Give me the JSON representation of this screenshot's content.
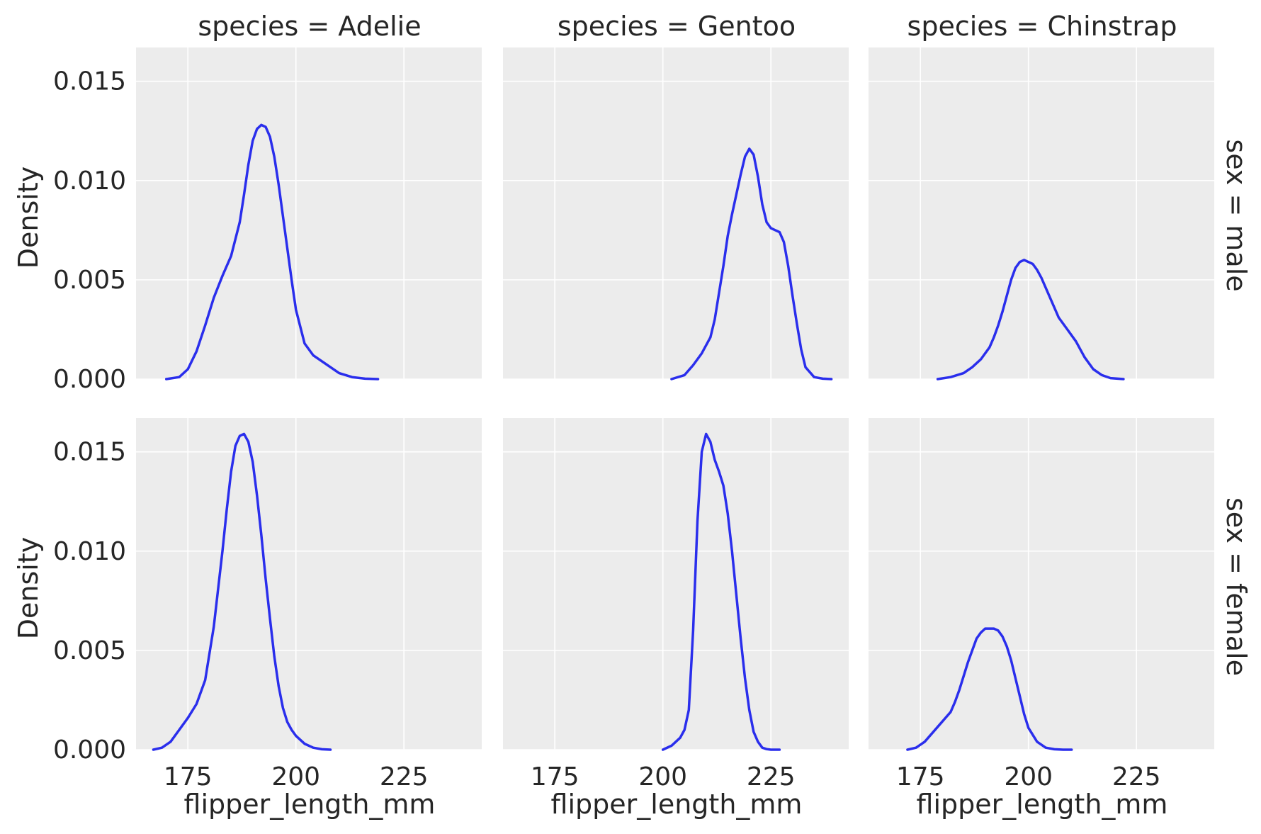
{
  "chart_data": {
    "type": "line",
    "facet_cols": [
      "species = Adelie",
      "species = Gentoo",
      "species = Chinstrap"
    ],
    "facet_rows": [
      "sex = male",
      "sex = female"
    ],
    "xlabel": "flipper_length_mm",
    "ylabel": "Density",
    "xlim": [
      163,
      243
    ],
    "ylim": [
      0,
      0.0167
    ],
    "xticks": [
      175,
      200,
      225
    ],
    "yticks": [
      0.0,
      0.005,
      0.01,
      0.015
    ],
    "ytick_labels": [
      "0.000",
      "0.005",
      "0.010",
      "0.015"
    ],
    "grid": true,
    "line_color": "#2a2eec",
    "panel_background": "#ececec",
    "panels": [
      {
        "row": 0,
        "col": 0,
        "name": "Adelie male",
        "x": [
          170,
          173,
          175,
          177,
          179,
          181,
          183,
          185,
          187,
          188,
          189,
          190,
          191,
          192,
          193,
          194,
          195,
          196,
          197,
          198,
          199,
          200,
          202,
          204,
          206,
          208,
          210,
          213,
          216,
          219
        ],
        "y": [
          0.0,
          0.0001,
          0.0005,
          0.0014,
          0.0027,
          0.0041,
          0.0052,
          0.0062,
          0.0079,
          0.0093,
          0.0108,
          0.012,
          0.0126,
          0.0128,
          0.0127,
          0.0122,
          0.0112,
          0.0098,
          0.0082,
          0.0066,
          0.005,
          0.0035,
          0.0018,
          0.0012,
          0.0009,
          0.0006,
          0.0003,
          0.0001,
          2e-05,
          0.0
        ]
      },
      {
        "row": 0,
        "col": 1,
        "name": "Gentoo male",
        "x": [
          202,
          205,
          207,
          209,
          211,
          212,
          214,
          215,
          216,
          217,
          218,
          219,
          220,
          221,
          222,
          223,
          224,
          225,
          226,
          227,
          228,
          229,
          230,
          231,
          232,
          233,
          235,
          237,
          239
        ],
        "y": [
          0.0,
          0.0002,
          0.0007,
          0.0013,
          0.0021,
          0.003,
          0.0057,
          0.0072,
          0.0083,
          0.0093,
          0.0103,
          0.0112,
          0.0116,
          0.0113,
          0.0102,
          0.0088,
          0.0079,
          0.0076,
          0.0075,
          0.0074,
          0.0069,
          0.0057,
          0.0042,
          0.0028,
          0.0015,
          0.0006,
          0.0001,
          2e-05,
          0.0
        ]
      },
      {
        "row": 0,
        "col": 2,
        "name": "Chinstrap male",
        "x": [
          179,
          182,
          185,
          187,
          189,
          191,
          192,
          193,
          194,
          195,
          196,
          197,
          198,
          199,
          200,
          201,
          202,
          203,
          204,
          205,
          206,
          207,
          209,
          211,
          213,
          215,
          217,
          219,
          222
        ],
        "y": [
          0.0,
          0.0001,
          0.0003,
          0.0006,
          0.001,
          0.0016,
          0.0021,
          0.0027,
          0.0034,
          0.0042,
          0.005,
          0.0056,
          0.0059,
          0.006,
          0.0059,
          0.0058,
          0.0055,
          0.0051,
          0.0046,
          0.0041,
          0.0036,
          0.0031,
          0.0025,
          0.0019,
          0.0011,
          0.0005,
          0.0002,
          5e-05,
          0.0
        ]
      },
      {
        "row": 1,
        "col": 0,
        "name": "Adelie female",
        "x": [
          167,
          169,
          171,
          173,
          175,
          177,
          179,
          181,
          183,
          184,
          185,
          186,
          187,
          188,
          189,
          190,
          191,
          192,
          193,
          194,
          195,
          196,
          197,
          198,
          199,
          200,
          202,
          204,
          206,
          208
        ],
        "y": [
          0.0,
          0.0001,
          0.0004,
          0.001,
          0.0016,
          0.0023,
          0.0035,
          0.0062,
          0.01,
          0.0121,
          0.014,
          0.0153,
          0.0158,
          0.0159,
          0.0155,
          0.0145,
          0.0128,
          0.0108,
          0.0086,
          0.0066,
          0.0047,
          0.0032,
          0.0021,
          0.0014,
          0.001,
          0.0007,
          0.0003,
          0.0001,
          2e-05,
          0.0
        ]
      },
      {
        "row": 1,
        "col": 1,
        "name": "Gentoo female",
        "x": [
          200,
          202,
          204,
          205,
          206,
          207,
          208,
          209,
          210,
          211,
          212,
          213,
          214,
          215,
          216,
          217,
          218,
          219,
          220,
          221,
          222,
          223,
          224,
          225,
          226,
          227
        ],
        "y": [
          0.0,
          0.0002,
          0.0006,
          0.001,
          0.002,
          0.006,
          0.0115,
          0.015,
          0.0159,
          0.0155,
          0.0146,
          0.014,
          0.0133,
          0.0119,
          0.01,
          0.0078,
          0.0056,
          0.0036,
          0.002,
          0.0009,
          0.0004,
          0.0001,
          3e-05,
          0.0,
          0.0,
          0.0
        ]
      },
      {
        "row": 1,
        "col": 2,
        "name": "Chinstrap female",
        "x": [
          172,
          174,
          176,
          178,
          180,
          182,
          183,
          184,
          185,
          186,
          187,
          188,
          189,
          190,
          191,
          192,
          193,
          194,
          195,
          196,
          197,
          198,
          199,
          200,
          202,
          204,
          206,
          208,
          210
        ],
        "y": [
          0.0,
          0.0001,
          0.0004,
          0.0009,
          0.0014,
          0.0019,
          0.0024,
          0.003,
          0.0037,
          0.0044,
          0.005,
          0.0056,
          0.0059,
          0.0061,
          0.0061,
          0.0061,
          0.006,
          0.0057,
          0.0052,
          0.0045,
          0.0036,
          0.0027,
          0.0018,
          0.0011,
          0.0004,
          0.0001,
          2e-05,
          0.0,
          0.0
        ]
      }
    ]
  }
}
